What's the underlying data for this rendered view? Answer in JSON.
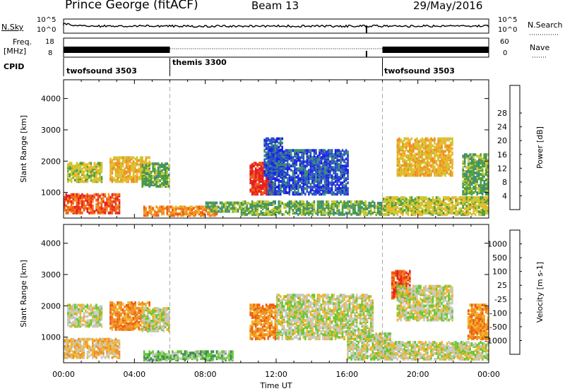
{
  "header": {
    "station": "Prince George (fitACF)",
    "beam": "Beam 13",
    "date": "29/May/2016"
  },
  "strip_labels": {
    "nsky": "N.Sky",
    "nsearch": "N.Search",
    "freq_top": "Freq.",
    "freq_unit": "[MHz]",
    "nave": "Nave",
    "cpid": "CPID",
    "noise_ticks_left": [
      "10^5",
      "10^0"
    ],
    "noise_ticks_right": [
      "10^5",
      "10^0"
    ],
    "freq_ticks_left": [
      "18",
      "8"
    ],
    "nave_ticks_right": [
      "60",
      "0"
    ]
  },
  "cpid_segments": [
    {
      "label": "twofsound 3503",
      "start_hour": 0
    },
    {
      "label": "themis 3300",
      "start_hour": 6
    },
    {
      "label": "twofsound 3503",
      "start_hour": 18
    }
  ],
  "chart_data": [
    {
      "type": "heatmap",
      "name": "power",
      "ylabel": "Slant Range [km]",
      "ylim": [
        180,
        4600
      ],
      "yticks": [
        1000,
        2000,
        3000,
        4000
      ],
      "xlabel": "Time UT",
      "xlim": [
        0,
        24
      ],
      "xticks": [
        "00:00",
        "04:00",
        "08:00",
        "12:00",
        "16:00",
        "20:00",
        "00:00"
      ],
      "colorbar": {
        "label": "Power [dB]",
        "ticks": [
          "4",
          "8",
          "12",
          "16",
          "20",
          "24",
          "28"
        ],
        "colors": [
          "#1e1ee6",
          "#2850c8",
          "#3c8c78",
          "#4ea03c",
          "#c8c832",
          "#f0b428",
          "#f08c1e",
          "#f05a14",
          "#e61e1e"
        ]
      },
      "regions": [
        {
          "t0": 0.0,
          "t1": 3.2,
          "r0": 300,
          "r1": 900,
          "level": 7
        },
        {
          "t0": 0.2,
          "t1": 2.2,
          "r0": 1300,
          "r1": 1900,
          "level": 4
        },
        {
          "t0": 2.6,
          "t1": 4.8,
          "r0": 1300,
          "r1": 2100,
          "level": 5
        },
        {
          "t0": 4.4,
          "t1": 5.9,
          "r0": 1150,
          "r1": 1900,
          "level": 3
        },
        {
          "t0": 4.5,
          "t1": 8.6,
          "r0": 220,
          "r1": 500,
          "level": 6
        },
        {
          "t0": 8.0,
          "t1": 10.0,
          "r0": 350,
          "r1": 650,
          "level": 3
        },
        {
          "t0": 10.5,
          "t1": 11.7,
          "r0": 900,
          "r1": 1900,
          "level": 8
        },
        {
          "t0": 11.3,
          "t1": 12.3,
          "r0": 1500,
          "r1": 2700,
          "level": 1
        },
        {
          "t0": 11.5,
          "t1": 16.0,
          "r0": 900,
          "r1": 2300,
          "level": 1
        },
        {
          "t0": 10.0,
          "t1": 18.0,
          "r0": 250,
          "r1": 700,
          "level": 3
        },
        {
          "t0": 18.0,
          "t1": 24.0,
          "r0": 250,
          "r1": 800,
          "level": 4
        },
        {
          "t0": 18.8,
          "t1": 22.0,
          "r0": 1500,
          "r1": 2700,
          "level": 5
        },
        {
          "t0": 22.5,
          "t1": 24.0,
          "r0": 900,
          "r1": 2200,
          "level": 3
        }
      ]
    },
    {
      "type": "heatmap",
      "name": "velocity",
      "ylabel": "Slant Range [km]",
      "ylim": [
        180,
        4600
      ],
      "yticks": [
        1000,
        2000,
        3000,
        4000
      ],
      "xlabel": "Time UT",
      "xlim": [
        0,
        24
      ],
      "xticks": [
        "00:00",
        "04:00",
        "08:00",
        "12:00",
        "16:00",
        "20:00",
        "00:00"
      ],
      "colorbar": {
        "label": "Velocity [m s-1]",
        "ticks": [
          "1000",
          "500",
          "100",
          "25",
          "-25",
          "-100",
          "-500",
          "-1000"
        ],
        "colors": [
          "#2040c8",
          "#2c6ea0",
          "#3c8c50",
          "#64c832",
          "#c8c8c0",
          "#f0b428",
          "#f08c1e",
          "#f05a14",
          "#e61e1e"
        ]
      },
      "regions": [
        {
          "t0": 0.0,
          "t1": 3.2,
          "r0": 300,
          "r1": 900,
          "level": 5
        },
        {
          "t0": 0.2,
          "t1": 2.2,
          "r0": 1300,
          "r1": 2000,
          "level": 4
        },
        {
          "t0": 2.6,
          "t1": 4.8,
          "r0": 1200,
          "r1": 2100,
          "level": 6
        },
        {
          "t0": 4.4,
          "t1": 5.9,
          "r0": 1150,
          "r1": 1900,
          "level": 4
        },
        {
          "t0": 4.5,
          "t1": 9.5,
          "r0": 220,
          "r1": 500,
          "level": 3
        },
        {
          "t0": 10.5,
          "t1": 12.0,
          "r0": 900,
          "r1": 2000,
          "level": 6
        },
        {
          "t0": 12.0,
          "t1": 17.5,
          "r0": 900,
          "r1": 2300,
          "level": 4
        },
        {
          "t0": 16.0,
          "t1": 18.5,
          "r0": 250,
          "r1": 1100,
          "level": 4
        },
        {
          "t0": 18.0,
          "t1": 24.0,
          "r0": 250,
          "r1": 800,
          "level": 4
        },
        {
          "t0": 18.5,
          "t1": 19.6,
          "r0": 2200,
          "r1": 3100,
          "level": 7
        },
        {
          "t0": 18.8,
          "t1": 22.0,
          "r0": 1500,
          "r1": 2600,
          "level": 4
        },
        {
          "t0": 22.8,
          "t1": 24.0,
          "r0": 900,
          "r1": 2000,
          "level": 6
        }
      ]
    }
  ]
}
